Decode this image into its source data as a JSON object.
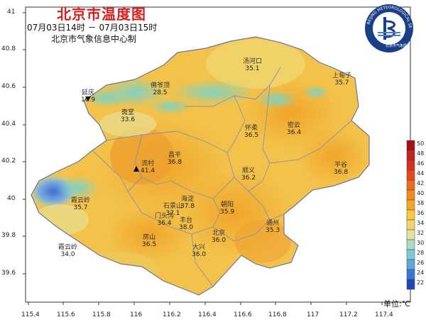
{
  "header": {
    "title": "北京市温度图",
    "time_range": "07月03日14时 － 07月03日15时",
    "issuer": "北京市气象信息中心制"
  },
  "logo": {
    "ring_text": "BEIJING METEOROLOGICAL SERVICE",
    "inner_text": "北京市气象局"
  },
  "axes": {
    "x_ticks": [
      "115.4",
      "115.6",
      "115.8",
      "116",
      "116.2",
      "116.4",
      "116.6",
      "116.8",
      "117",
      "117.2",
      "117.4"
    ],
    "y_ticks": [
      "41",
      "40.8",
      "40.6",
      "40.4",
      "40.2",
      "40",
      "39.8",
      "39.6"
    ]
  },
  "colorbar": {
    "unit_label": "单位:℃",
    "ticks": [
      "50",
      "48",
      "46",
      "44",
      "42",
      "40",
      "38",
      "36",
      "34",
      "32",
      "30",
      "28",
      "26",
      "24",
      "22"
    ],
    "colors": [
      "#a50f15",
      "#c0271b",
      "#d7301f",
      "#e34a1d",
      "#ee6a1c",
      "#f28b1e",
      "#f6a623",
      "#fbc93a",
      "#f3d46b",
      "#e3e3a0",
      "#a9dcc4",
      "#7ec8d9",
      "#5aa7dc",
      "#3a78d3",
      "#1f48b8"
    ]
  },
  "stations": [
    {
      "name": "延庆",
      "value": "16.9",
      "marker": "triangle-down"
    },
    {
      "name": "佛爷顶",
      "value": "28.5"
    },
    {
      "name": "汤河口",
      "value": "35.1"
    },
    {
      "name": "上甸子",
      "value": "35.7"
    },
    {
      "name": "斋堂",
      "value": "33.6"
    },
    {
      "name": "怀柔",
      "value": "36.5"
    },
    {
      "name": "密云",
      "value": "36.4"
    },
    {
      "name": "昌平",
      "value": "36.8"
    },
    {
      "name": "流村",
      "value": "41.4",
      "marker": "triangle-up"
    },
    {
      "name": "平谷",
      "value": "36.8"
    },
    {
      "name": "顺义",
      "value": "36.2"
    },
    {
      "name": "霞云岭",
      "value": "35.7"
    },
    {
      "name": "海淀",
      "value": "37.8"
    },
    {
      "name": "石景山",
      "value": "37.1"
    },
    {
      "name": "门头沟",
      "value": "36.4"
    },
    {
      "name": "朝阳",
      "value": "35.9"
    },
    {
      "name": "丰台",
      "value": "38.0"
    },
    {
      "name": "通州",
      "value": "35.3"
    },
    {
      "name": "北京",
      "value": "36.0"
    },
    {
      "name": "霞云岭",
      "value": "34.0"
    },
    {
      "name": "房山",
      "value": "36.5"
    },
    {
      "name": "大兴",
      "value": "36.0"
    }
  ]
}
